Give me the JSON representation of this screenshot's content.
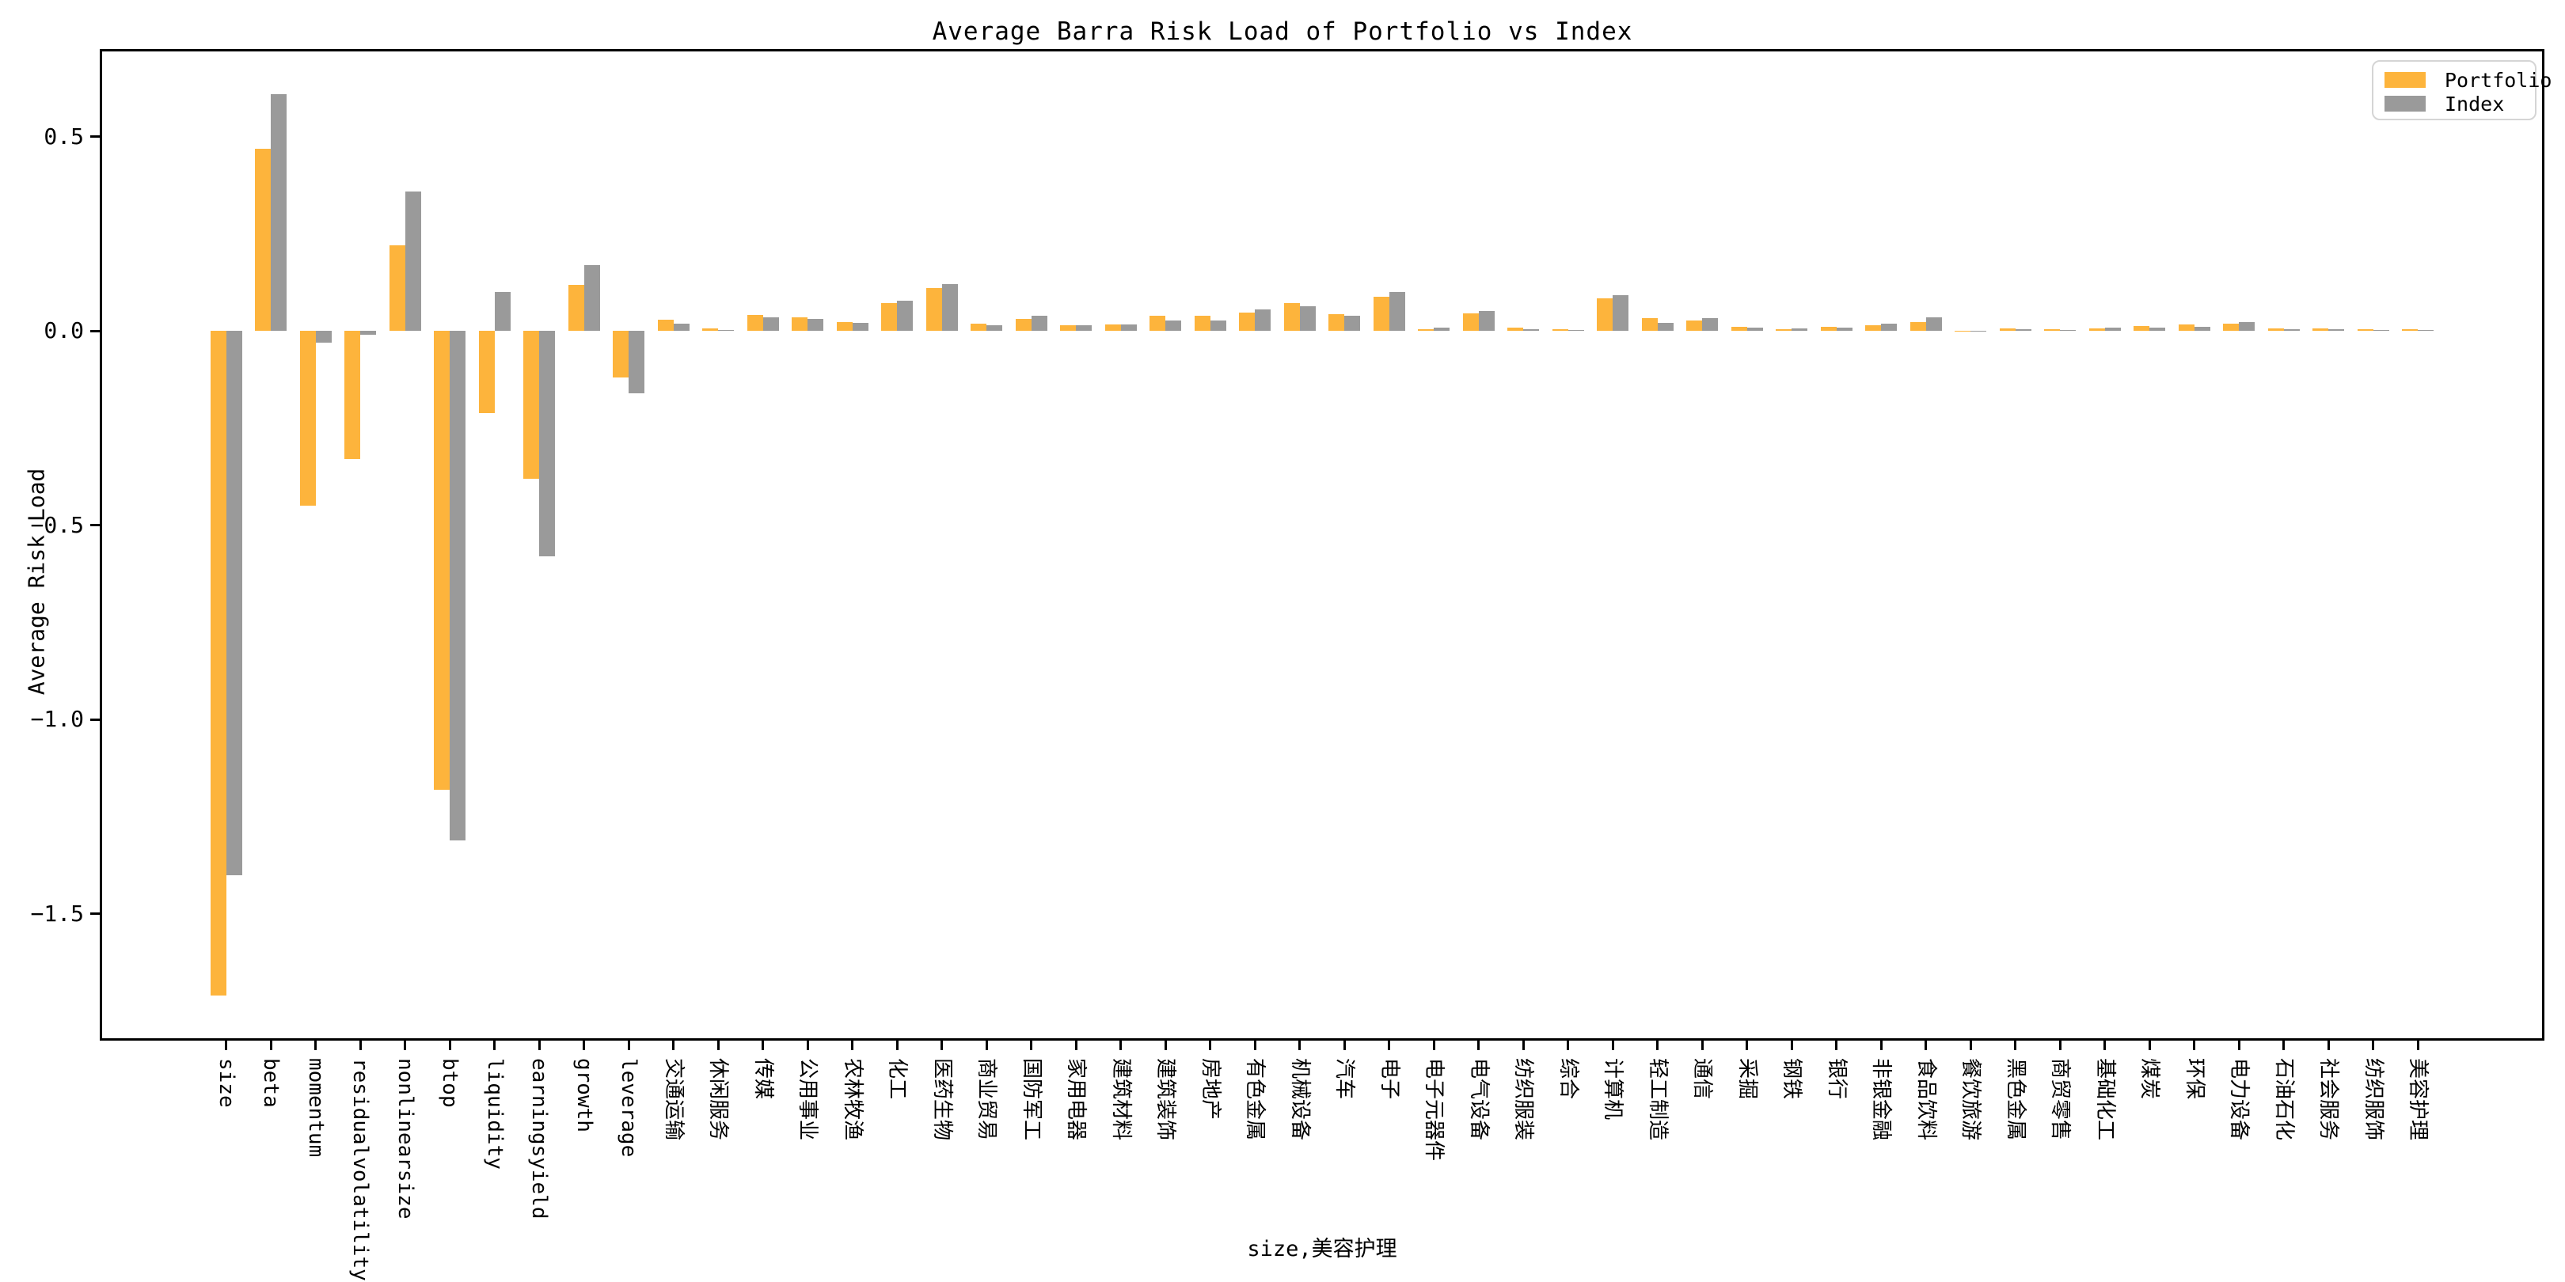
{
  "chart_data": {
    "type": "bar",
    "title": "Average Barra Risk Load of Portfolio vs Index",
    "xlabel": "size,美容护理",
    "ylabel": "Average Risk Load",
    "categories": [
      "size",
      "beta",
      "momentum",
      "residualvolatility",
      "nonlinearsize",
      "btop",
      "liquidity",
      "earningsyield",
      "growth",
      "leverage",
      "交通运输",
      "休闲服务",
      "传媒",
      "公用事业",
      "农林牧渔",
      "化工",
      "医药生物",
      "商业贸易",
      "国防军工",
      "家用电器",
      "建筑材料",
      "建筑装饰",
      "房地产",
      "有色金属",
      "机械设备",
      "汽车",
      "电子",
      "电子元器件",
      "电气设备",
      "纺织服装",
      "综合",
      "计算机",
      "轻工制造",
      "通信",
      "采掘",
      "钢铁",
      "银行",
      "非银金融",
      "食品饮料",
      "餐饮旅游",
      "黑色金属",
      "商贸零售",
      "基础化工",
      "煤炭",
      "环保",
      "电力设备",
      "石油石化",
      "社会服务",
      "纺织服饰",
      "美容护理"
    ],
    "series": [
      {
        "name": "Portfolio",
        "color": "#FDB43C",
        "values": [
          -1.71,
          0.47,
          -0.45,
          -0.33,
          0.22,
          -1.18,
          -0.21,
          -0.38,
          0.12,
          -0.12,
          0.029,
          0.007,
          0.042,
          0.035,
          0.024,
          0.073,
          0.111,
          0.019,
          0.032,
          0.015,
          0.018,
          0.039,
          0.039,
          0.048,
          0.073,
          0.044,
          0.088,
          0.005,
          0.046,
          0.009,
          0.005,
          0.084,
          0.034,
          0.028,
          0.012,
          0.004,
          0.011,
          0.016,
          0.024,
          0.001,
          0.007,
          0.004,
          0.007,
          0.013,
          0.017,
          0.019,
          0.008,
          0.007,
          0.004,
          0.006
        ]
      },
      {
        "name": "Index",
        "color": "#9A9A9A",
        "values": [
          -1.4,
          0.61,
          -0.03,
          -0.01,
          0.36,
          -1.31,
          0.1,
          -0.58,
          0.17,
          -0.16,
          0.019,
          0.003,
          0.035,
          0.032,
          0.022,
          0.078,
          0.121,
          0.015,
          0.039,
          0.015,
          0.018,
          0.028,
          0.027,
          0.055,
          0.064,
          0.039,
          0.101,
          0.01,
          0.051,
          0.006,
          0.003,
          0.092,
          0.022,
          0.033,
          0.009,
          0.007,
          0.009,
          0.019,
          0.035,
          0.001,
          0.005,
          0.002,
          0.009,
          0.009,
          0.011,
          0.023,
          0.005,
          0.006,
          0.003,
          0.003
        ]
      }
    ],
    "ylim": [
      -1.826,
      0.726
    ],
    "yticks": [
      {
        "value": 0.5,
        "label": "0.5"
      },
      {
        "value": 0.0,
        "label": "0.0"
      },
      {
        "value": -0.5,
        "label": "−0.5"
      },
      {
        "value": -1.0,
        "label": "−1.0"
      },
      {
        "value": -1.5,
        "label": "−1.5"
      }
    ],
    "legend": {
      "position": "upper right",
      "labels": [
        "Portfolio",
        "Index"
      ]
    },
    "grid": false
  }
}
